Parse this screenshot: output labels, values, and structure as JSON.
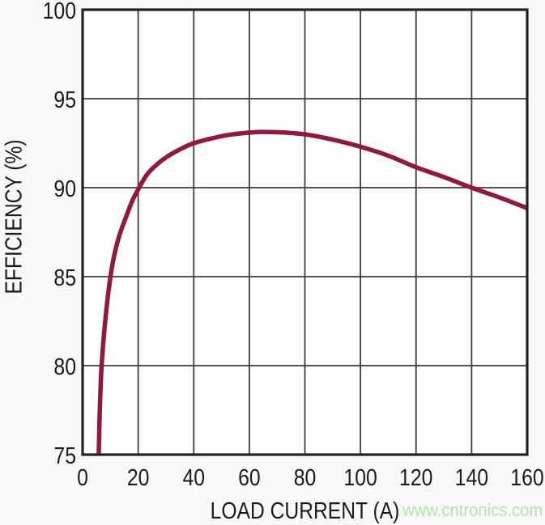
{
  "chart_data": {
    "type": "line",
    "title": "",
    "xlabel": "LOAD CURRENT (A)",
    "ylabel": "EFFICIENCY (%)",
    "xlim": [
      0,
      160
    ],
    "ylim": [
      75,
      100
    ],
    "xticks": [
      0,
      20,
      40,
      60,
      80,
      100,
      120,
      140,
      160
    ],
    "yticks": [
      75,
      80,
      85,
      90,
      95,
      100
    ],
    "grid": true,
    "legend": false,
    "colors": {
      "grid": "#3d3d3d",
      "border": "#222222",
      "text": "#1b1b1b",
      "plot_background": "#fefefe"
    },
    "series": [
      {
        "name": "efficiency-vs-load-current",
        "color": "#8e1a43",
        "points": [
          [
            5.8,
            75
          ],
          [
            6.1,
            77
          ],
          [
            6.6,
            79.3
          ],
          [
            7.2,
            80.8
          ],
          [
            8.2,
            82.6
          ],
          [
            9.5,
            84.4
          ],
          [
            11,
            85.9
          ],
          [
            13,
            87.2
          ],
          [
            15.5,
            88.3
          ],
          [
            18,
            89.3
          ],
          [
            20,
            89.9
          ],
          [
            23,
            90.7
          ],
          [
            26,
            91.2
          ],
          [
            30,
            91.7
          ],
          [
            35,
            92.15
          ],
          [
            40,
            92.5
          ],
          [
            46,
            92.75
          ],
          [
            52,
            92.95
          ],
          [
            58,
            93.07
          ],
          [
            64,
            93.13
          ],
          [
            70,
            93.12
          ],
          [
            76,
            93.06
          ],
          [
            82,
            92.95
          ],
          [
            90,
            92.7
          ],
          [
            100,
            92.3
          ],
          [
            110,
            91.8
          ],
          [
            120,
            91.15
          ],
          [
            130,
            90.6
          ],
          [
            140,
            90.0
          ],
          [
            150,
            89.45
          ],
          [
            160,
            88.85
          ]
        ]
      }
    ]
  },
  "watermark": {
    "text": "www.cntronics.com",
    "color": "#b7e3b1"
  }
}
